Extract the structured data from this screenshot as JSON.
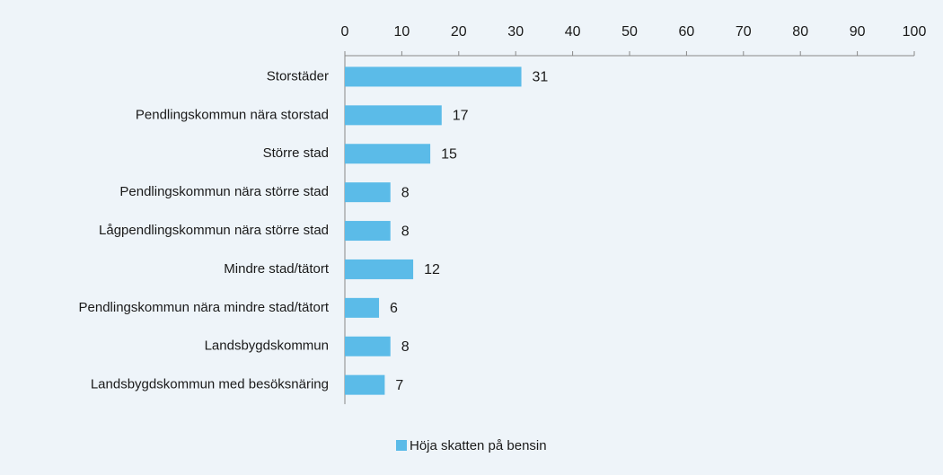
{
  "chart_data": {
    "type": "bar",
    "orientation": "horizontal",
    "categories": [
      "Storstäder",
      "Pendlingskommun nära storstad",
      "Större stad",
      "Pendlingskommun nära större stad",
      "Lågpendlingskommun nära större stad",
      "Mindre stad/tätort",
      "Pendlingskommun nära mindre stad/tätort",
      "Landsbygdskommun",
      "Landsbygdskommun med besöksnäring"
    ],
    "series": [
      {
        "name": "Höja skatten på bensin",
        "color": "#5bbbe8",
        "values": [
          31,
          17,
          15,
          8,
          8,
          12,
          6,
          8,
          7
        ]
      }
    ],
    "xlim": [
      0,
      100
    ],
    "xticks": [
      0,
      10,
      20,
      30,
      40,
      50,
      60,
      70,
      80,
      90,
      100
    ],
    "legend": "bottom"
  }
}
